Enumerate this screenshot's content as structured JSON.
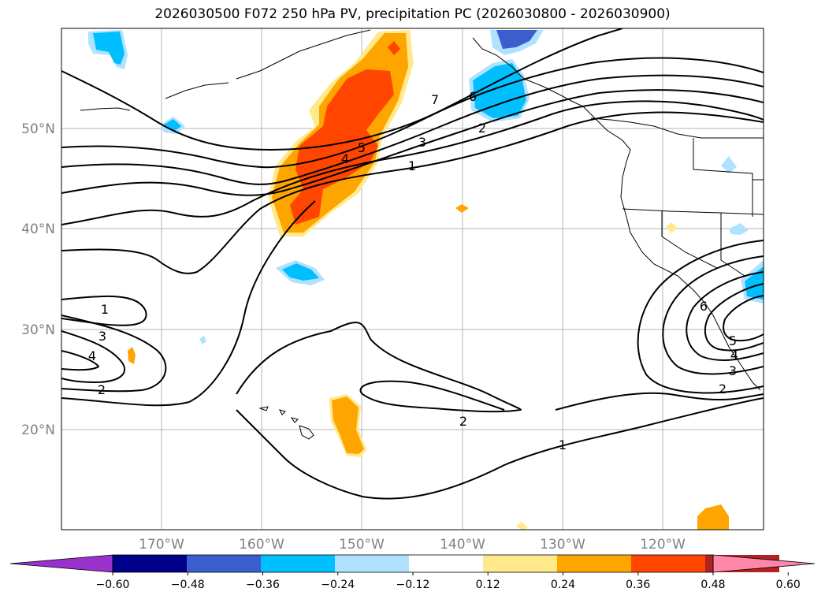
{
  "map": {
    "title": "2026030500 F072 250 hPa PV, precipitation PC (2026030800 - 2026030900)",
    "lon_labels": [
      "170°W",
      "160°W",
      "150°W",
      "140°W",
      "130°W",
      "120°W"
    ],
    "lat_labels": [
      "50°N",
      "40°N",
      "30°N",
      "20°N"
    ],
    "contour_labels": [
      "7",
      "6",
      "5",
      "4",
      "3",
      "2",
      "1",
      "1",
      "3",
      "4",
      "2",
      "2",
      "1",
      "6",
      "5",
      "4",
      "3",
      "2"
    ],
    "colorbar": {
      "tick_labels": [
        "−0.60",
        "−0.48",
        "−0.36",
        "−0.24",
        "−0.12",
        "0.12",
        "0.24",
        "0.36",
        "0.48",
        "0.60"
      ],
      "colors": [
        "#9932cc",
        "#00008b",
        "#3a5fcd",
        "#00bfff",
        "#b0e2ff",
        "#ffffff",
        "#ffe98a",
        "#ffa500",
        "#ff4500",
        "#b22222",
        "#ff88aa"
      ]
    }
  }
}
